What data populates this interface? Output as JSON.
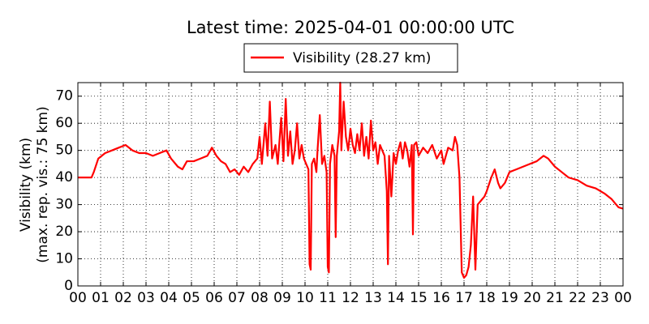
{
  "chart_data": {
    "type": "line",
    "title": "Latest time: 2025-04-01 00:00:00 UTC",
    "ylabel": [
      "Visibility (km)",
      "(max. rep. vis.: 75 km)"
    ],
    "xlim": [
      0,
      24
    ],
    "ylim": [
      0,
      75
    ],
    "xticks": [
      {
        "value": 0,
        "label": "00"
      },
      {
        "value": 1,
        "label": "01"
      },
      {
        "value": 2,
        "label": "02"
      },
      {
        "value": 3,
        "label": "03"
      },
      {
        "value": 4,
        "label": "04"
      },
      {
        "value": 5,
        "label": "05"
      },
      {
        "value": 6,
        "label": "06"
      },
      {
        "value": 7,
        "label": "07"
      },
      {
        "value": 8,
        "label": "08"
      },
      {
        "value": 9,
        "label": "09"
      },
      {
        "value": 10,
        "label": "10"
      },
      {
        "value": 11,
        "label": "11"
      },
      {
        "value": 12,
        "label": "12"
      },
      {
        "value": 13,
        "label": "13"
      },
      {
        "value": 14,
        "label": "14"
      },
      {
        "value": 15,
        "label": "15"
      },
      {
        "value": 16,
        "label": "16"
      },
      {
        "value": 17,
        "label": "17"
      },
      {
        "value": 18,
        "label": "18"
      },
      {
        "value": 19,
        "label": "19"
      },
      {
        "value": 20,
        "label": "20"
      },
      {
        "value": 21,
        "label": "21"
      },
      {
        "value": 22,
        "label": "22"
      },
      {
        "value": 23,
        "label": "23"
      },
      {
        "value": 24,
        "label": "00"
      }
    ],
    "yticks": [
      0,
      10,
      20,
      30,
      40,
      50,
      60,
      70
    ],
    "grid": true,
    "legend": "top",
    "x": [
      0,
      0.3,
      0.6,
      0.7,
      0.9,
      1.2,
      1.5,
      1.8,
      2.1,
      2.4,
      2.7,
      3.0,
      3.3,
      3.6,
      3.9,
      4.1,
      4.4,
      4.6,
      4.8,
      5.1,
      5.4,
      5.7,
      5.9,
      6.1,
      6.3,
      6.5,
      6.7,
      6.9,
      7.1,
      7.3,
      7.5,
      7.7,
      7.9,
      8.0,
      8.1,
      8.25,
      8.35,
      8.45,
      8.55,
      8.7,
      8.8,
      8.95,
      9.05,
      9.15,
      9.25,
      9.35,
      9.45,
      9.55,
      9.65,
      9.75,
      9.85,
      9.95,
      10.05,
      10.15,
      10.2,
      10.25,
      10.3,
      10.4,
      10.5,
      10.55,
      10.65,
      10.75,
      10.85,
      10.95,
      11.0,
      11.05,
      11.1,
      11.2,
      11.3,
      11.35,
      11.4,
      11.5,
      11.55,
      11.6,
      11.7,
      11.8,
      11.9,
      12.0,
      12.1,
      12.2,
      12.3,
      12.4,
      12.5,
      12.6,
      12.7,
      12.8,
      12.9,
      13.0,
      13.1,
      13.2,
      13.3,
      13.4,
      13.5,
      13.6,
      13.65,
      13.7,
      13.8,
      13.9,
      14.0,
      14.1,
      14.2,
      14.3,
      14.4,
      14.5,
      14.6,
      14.7,
      14.75,
      14.8,
      14.9,
      15.0,
      15.2,
      15.4,
      15.6,
      15.8,
      16.0,
      16.1,
      16.3,
      16.5,
      16.6,
      16.7,
      16.8,
      16.9,
      17.0,
      17.1,
      17.2,
      17.3,
      17.4,
      17.5,
      17.6,
      17.7,
      17.9,
      18.0,
      18.2,
      18.35,
      18.5,
      18.6,
      18.8,
      19.0,
      19.3,
      19.6,
      19.9,
      20.2,
      20.5,
      20.7,
      21.0,
      21.3,
      21.6,
      22.0,
      22.4,
      22.8,
      23.2,
      23.5,
      23.8,
      24.0
    ],
    "series": [
      {
        "name": "Visibility (28.27 km)",
        "color": "#ff0000",
        "values": [
          40,
          40,
          40,
          42,
          47,
          49,
          50,
          51,
          52,
          50,
          49,
          49,
          48,
          49,
          50,
          47,
          44,
          43,
          46,
          46,
          47,
          48,
          51,
          48,
          46,
          45,
          42,
          43,
          41,
          44,
          42,
          45,
          47,
          55,
          45,
          60,
          48,
          68,
          47,
          52,
          45,
          62,
          46,
          69,
          48,
          57,
          45,
          50,
          60,
          47,
          52,
          47,
          45,
          43,
          8,
          6,
          45,
          47,
          42,
          50,
          63,
          45,
          48,
          42,
          7,
          5,
          45,
          52,
          48,
          18,
          48,
          57,
          75,
          50,
          68,
          55,
          50,
          58,
          52,
          49,
          56,
          50,
          60,
          48,
          55,
          47,
          61,
          50,
          53,
          45,
          52,
          50,
          48,
          35,
          8,
          48,
          33,
          49,
          45,
          50,
          53,
          47,
          53,
          50,
          44,
          52,
          19,
          52,
          53,
          48,
          51,
          49,
          52,
          47,
          50,
          45,
          51,
          50,
          55,
          52,
          40,
          5,
          3,
          4,
          7,
          15,
          33,
          6,
          30,
          31,
          33,
          35,
          40,
          43,
          38,
          36,
          38,
          42,
          43,
          44,
          45,
          46,
          48,
          47,
          44,
          42,
          40,
          39,
          37,
          36,
          34,
          32,
          29,
          28.5
        ]
      }
    ]
  }
}
